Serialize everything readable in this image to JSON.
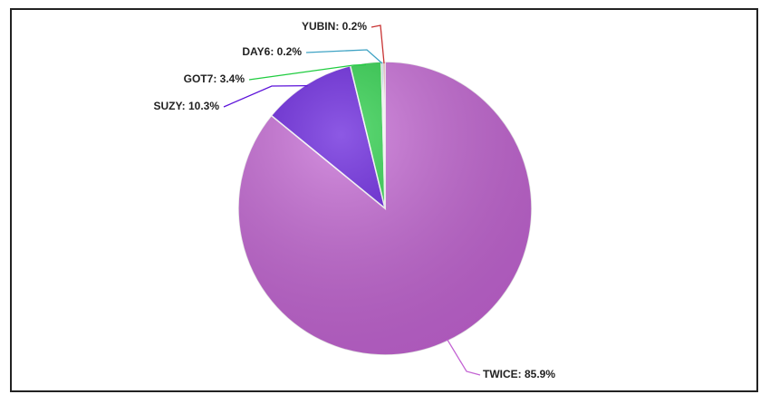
{
  "chart_data": {
    "type": "pie",
    "categories": [
      "TWICE",
      "SUZY",
      "GOT7",
      "DAY6",
      "YUBIN"
    ],
    "values": [
      85.9,
      10.3,
      3.4,
      0.2,
      0.2
    ],
    "value_labels": [
      ": 85.9%",
      ": 10.3%",
      ": 3.4%",
      ": 0.2%",
      ": 0.2%"
    ],
    "colors": [
      "#c363d3",
      "#5c12d9",
      "#1fcc3f",
      "#3fa3c4",
      "#c83333"
    ]
  }
}
